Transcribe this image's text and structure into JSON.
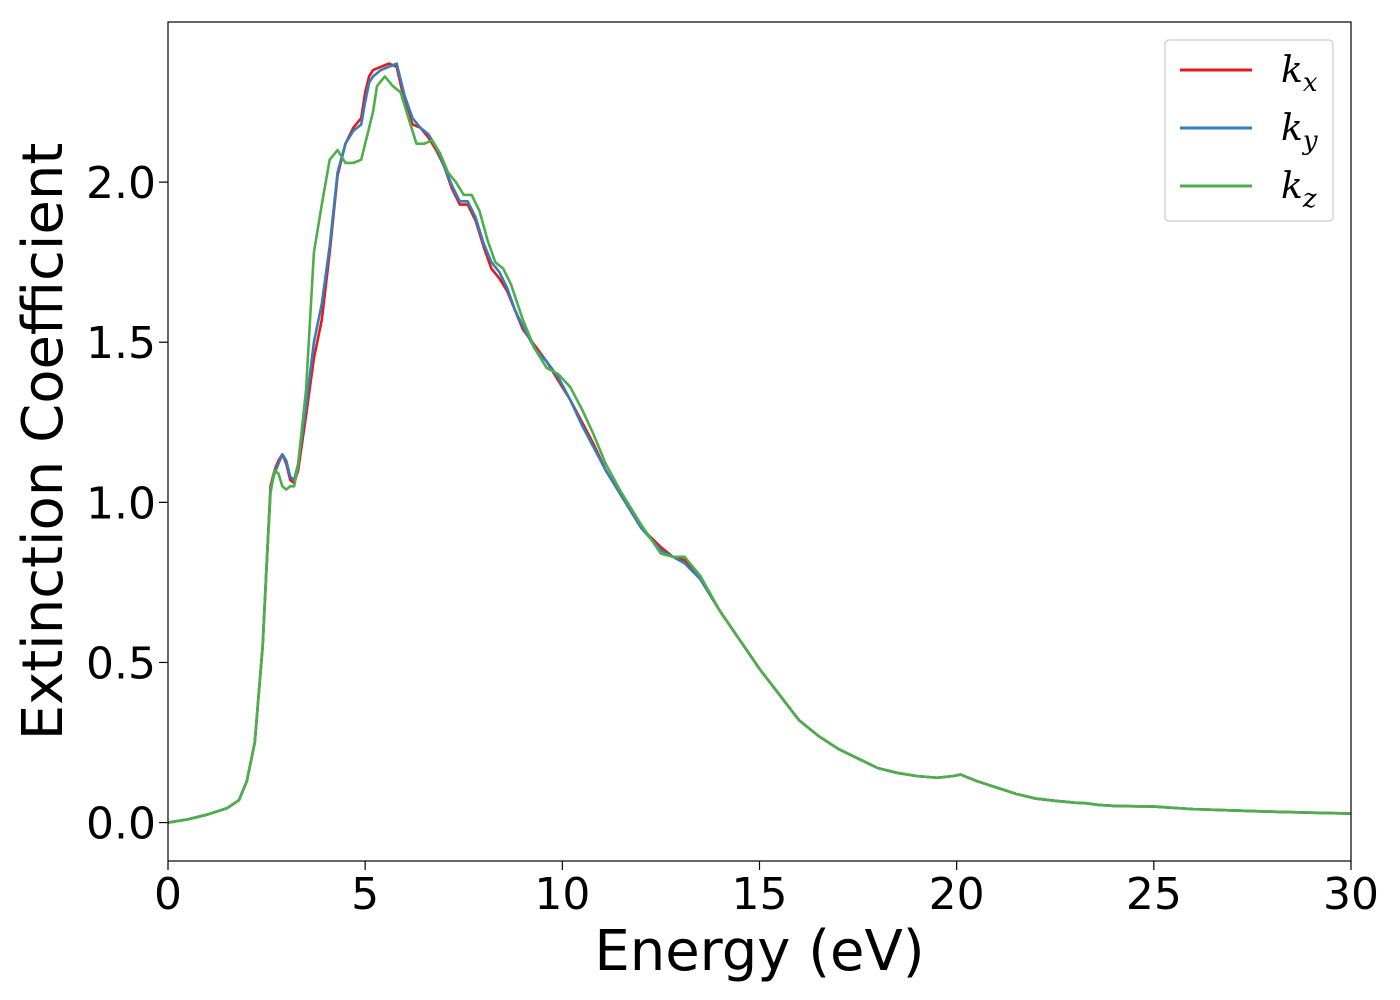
{
  "chart_data": {
    "type": "line",
    "title": "",
    "xlabel": "Energy (eV)",
    "ylabel": "Extinction Coefficient",
    "xlim": [
      0,
      30
    ],
    "ylim": [
      -0.12,
      2.5
    ],
    "xticks": [
      0,
      5,
      10,
      15,
      20,
      25,
      30
    ],
    "xtick_labels": [
      "0",
      "5",
      "10",
      "15",
      "20",
      "25",
      "30"
    ],
    "yticks": [
      0.0,
      0.5,
      1.0,
      1.5,
      2.0
    ],
    "ytick_labels": [
      "0.0",
      "0.5",
      "1.0",
      "1.5",
      "2.0"
    ],
    "grid": false,
    "legend_position": "top-right",
    "series": [
      {
        "name": "k_x",
        "base": "k",
        "sub": "x",
        "color": "#e41a1c",
        "x": [
          0,
          0.5,
          1,
          1.5,
          1.8,
          2.0,
          2.2,
          2.4,
          2.5,
          2.6,
          2.7,
          2.8,
          2.9,
          3.0,
          3.1,
          3.2,
          3.3,
          3.5,
          3.7,
          3.9,
          4.1,
          4.3,
          4.5,
          4.7,
          4.9,
          5.0,
          5.1,
          5.2,
          5.4,
          5.6,
          5.8,
          6.0,
          6.2,
          6.4,
          6.6,
          6.8,
          7.0,
          7.2,
          7.4,
          7.6,
          7.8,
          8.0,
          8.2,
          8.4,
          8.6,
          8.8,
          9.0,
          9.3,
          9.6,
          9.9,
          10.2,
          10.5,
          10.8,
          11.1,
          11.5,
          12.0,
          12.5,
          12.8,
          13.1,
          13.5,
          14.0,
          14.5,
          15.0,
          15.5,
          16.0,
          16.5,
          17.0,
          17.5,
          18.0,
          18.5,
          19.0,
          19.5,
          19.9,
          20.1,
          20.5,
          21.0,
          21.5,
          22.0,
          22.5,
          23.0,
          23.3,
          23.6,
          24.0,
          25.0,
          26.0,
          27.0,
          28.0,
          29.0,
          30.0
        ],
        "y": [
          0.0,
          0.01,
          0.025,
          0.045,
          0.07,
          0.13,
          0.25,
          0.55,
          0.8,
          1.05,
          1.1,
          1.13,
          1.15,
          1.12,
          1.07,
          1.06,
          1.1,
          1.27,
          1.45,
          1.57,
          1.78,
          2.02,
          2.12,
          2.17,
          2.2,
          2.28,
          2.33,
          2.35,
          2.36,
          2.37,
          2.36,
          2.25,
          2.18,
          2.17,
          2.14,
          2.1,
          2.05,
          1.98,
          1.93,
          1.93,
          1.88,
          1.8,
          1.73,
          1.7,
          1.66,
          1.6,
          1.54,
          1.49,
          1.44,
          1.38,
          1.32,
          1.25,
          1.18,
          1.1,
          1.02,
          0.92,
          0.86,
          0.83,
          0.82,
          0.76,
          0.66,
          0.57,
          0.48,
          0.4,
          0.32,
          0.27,
          0.23,
          0.2,
          0.17,
          0.155,
          0.145,
          0.14,
          0.145,
          0.15,
          0.13,
          0.11,
          0.09,
          0.075,
          0.068,
          0.062,
          0.06,
          0.055,
          0.052,
          0.05,
          0.042,
          0.038,
          0.034,
          0.031,
          0.028
        ]
      },
      {
        "name": "k_y",
        "base": "k",
        "sub": "y",
        "color": "#377eb8",
        "x": [
          0,
          0.5,
          1,
          1.5,
          1.8,
          2.0,
          2.2,
          2.4,
          2.5,
          2.6,
          2.7,
          2.8,
          2.9,
          3.0,
          3.1,
          3.2,
          3.3,
          3.5,
          3.7,
          3.9,
          4.1,
          4.3,
          4.5,
          4.7,
          4.9,
          5.0,
          5.1,
          5.2,
          5.4,
          5.6,
          5.8,
          6.0,
          6.2,
          6.4,
          6.6,
          6.8,
          7.0,
          7.2,
          7.4,
          7.6,
          7.8,
          8.0,
          8.2,
          8.4,
          8.6,
          8.8,
          9.0,
          9.3,
          9.6,
          9.9,
          10.2,
          10.5,
          10.8,
          11.1,
          11.5,
          12.0,
          12.5,
          12.8,
          13.1,
          13.5,
          14.0,
          14.5,
          15.0,
          15.5,
          16.0,
          16.5,
          17.0,
          17.5,
          18.0,
          18.5,
          19.0,
          19.5,
          19.9,
          20.1,
          20.5,
          21.0,
          21.5,
          22.0,
          22.5,
          23.0,
          23.3,
          23.6,
          24.0,
          25.0,
          26.0,
          27.0,
          28.0,
          29.0,
          30.0
        ],
        "y": [
          0.0,
          0.01,
          0.025,
          0.045,
          0.07,
          0.13,
          0.25,
          0.55,
          0.8,
          1.04,
          1.09,
          1.12,
          1.15,
          1.13,
          1.08,
          1.07,
          1.12,
          1.3,
          1.5,
          1.62,
          1.8,
          2.03,
          2.12,
          2.16,
          2.18,
          2.25,
          2.31,
          2.33,
          2.35,
          2.36,
          2.37,
          2.27,
          2.2,
          2.17,
          2.15,
          2.11,
          2.05,
          1.99,
          1.94,
          1.94,
          1.89,
          1.81,
          1.75,
          1.72,
          1.67,
          1.6,
          1.55,
          1.48,
          1.44,
          1.39,
          1.32,
          1.24,
          1.17,
          1.1,
          1.02,
          0.92,
          0.85,
          0.83,
          0.81,
          0.76,
          0.66,
          0.57,
          0.48,
          0.4,
          0.32,
          0.27,
          0.23,
          0.2,
          0.17,
          0.155,
          0.145,
          0.14,
          0.145,
          0.15,
          0.13,
          0.11,
          0.09,
          0.075,
          0.068,
          0.062,
          0.06,
          0.055,
          0.052,
          0.05,
          0.042,
          0.038,
          0.034,
          0.031,
          0.028
        ]
      },
      {
        "name": "k_z",
        "base": "k",
        "sub": "z",
        "color": "#4daf4a",
        "x": [
          0,
          0.5,
          1,
          1.5,
          1.8,
          2.0,
          2.2,
          2.4,
          2.5,
          2.6,
          2.7,
          2.8,
          2.9,
          3.0,
          3.1,
          3.2,
          3.3,
          3.5,
          3.7,
          3.9,
          4.1,
          4.3,
          4.4,
          4.5,
          4.7,
          4.9,
          5.0,
          5.1,
          5.2,
          5.3,
          5.5,
          5.7,
          5.9,
          6.1,
          6.3,
          6.5,
          6.7,
          6.9,
          7.1,
          7.3,
          7.5,
          7.7,
          7.9,
          8.1,
          8.3,
          8.5,
          8.7,
          9.0,
          9.3,
          9.6,
          9.9,
          10.2,
          10.5,
          10.8,
          11.1,
          11.5,
          12.0,
          12.5,
          12.8,
          13.1,
          13.5,
          14.0,
          14.5,
          15.0,
          15.5,
          16.0,
          16.5,
          17.0,
          17.5,
          18.0,
          18.5,
          19.0,
          19.5,
          19.9,
          20.1,
          20.5,
          21.0,
          21.5,
          22.0,
          22.5,
          23.0,
          23.3,
          23.6,
          24.0,
          25.0,
          26.0,
          27.0,
          28.0,
          29.0,
          30.0
        ],
        "y": [
          0.0,
          0.01,
          0.025,
          0.045,
          0.07,
          0.13,
          0.25,
          0.55,
          0.8,
          1.03,
          1.1,
          1.09,
          1.05,
          1.04,
          1.05,
          1.05,
          1.12,
          1.35,
          1.78,
          1.93,
          2.07,
          2.1,
          2.08,
          2.06,
          2.06,
          2.07,
          2.12,
          2.17,
          2.22,
          2.3,
          2.33,
          2.3,
          2.28,
          2.2,
          2.12,
          2.12,
          2.13,
          2.09,
          2.03,
          2.0,
          1.96,
          1.96,
          1.91,
          1.82,
          1.75,
          1.73,
          1.68,
          1.57,
          1.48,
          1.42,
          1.4,
          1.36,
          1.29,
          1.21,
          1.12,
          1.03,
          0.93,
          0.84,
          0.83,
          0.83,
          0.77,
          0.66,
          0.57,
          0.48,
          0.4,
          0.32,
          0.27,
          0.23,
          0.2,
          0.17,
          0.155,
          0.145,
          0.14,
          0.145,
          0.15,
          0.13,
          0.11,
          0.09,
          0.075,
          0.068,
          0.062,
          0.06,
          0.055,
          0.052,
          0.05,
          0.042,
          0.038,
          0.034,
          0.031,
          0.028
        ]
      }
    ]
  }
}
